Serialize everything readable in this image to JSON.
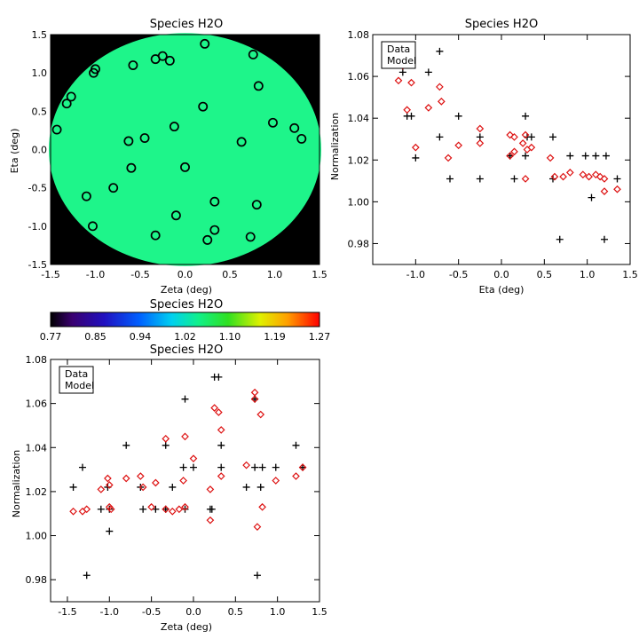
{
  "colors": {
    "data": "#000000",
    "model": "#dd1111",
    "map_bg": "#000000"
  },
  "chart_data": [
    {
      "type": "scatter",
      "id": "map",
      "title": "Species H2O",
      "xlabel": "Zeta (deg)",
      "ylabel": "Eta (deg)",
      "xlim": [
        -1.5,
        1.5
      ],
      "ylim": [
        -1.5,
        1.5
      ],
      "xticks": [
        "-1.5",
        "-1.0",
        "-0.5",
        "0.0",
        "0.5",
        "1.0",
        "1.5"
      ],
      "yticks": [
        "-1.5",
        "-1.0",
        "-0.5",
        "0.0",
        "0.5",
        "1.0",
        "1.5"
      ],
      "field_radius_deg": 1.52,
      "field_value": 1.04,
      "field_color": "#1ef58a",
      "marker": "open-circle",
      "points": [
        [
          -1.0,
          1.05
        ],
        [
          -1.02,
          1.0
        ],
        [
          -0.58,
          1.1
        ],
        [
          -0.33,
          1.18
        ],
        [
          -0.25,
          1.22
        ],
        [
          -0.17,
          1.16
        ],
        [
          0.22,
          1.38
        ],
        [
          0.76,
          1.24
        ],
        [
          0.82,
          0.83
        ],
        [
          -1.27,
          0.69
        ],
        [
          -1.32,
          0.6
        ],
        [
          -1.43,
          0.26
        ],
        [
          0.2,
          0.56
        ],
        [
          -0.45,
          0.15
        ],
        [
          -0.12,
          0.3
        ],
        [
          -0.63,
          0.11
        ],
        [
          0.98,
          0.35
        ],
        [
          1.22,
          0.28
        ],
        [
          1.3,
          0.14
        ],
        [
          0.63,
          0.1
        ],
        [
          -0.6,
          -0.24
        ],
        [
          0.0,
          -0.23
        ],
        [
          -0.8,
          -0.5
        ],
        [
          -1.1,
          -0.61
        ],
        [
          -0.1,
          -0.86
        ],
        [
          0.33,
          -0.68
        ],
        [
          0.8,
          -0.72
        ],
        [
          -1.03,
          -1.0
        ],
        [
          -0.33,
          -1.12
        ],
        [
          0.25,
          -1.18
        ],
        [
          0.33,
          -1.05
        ],
        [
          0.73,
          -1.14
        ]
      ]
    },
    {
      "type": "colorbar",
      "id": "colorbar",
      "title": "Species H2O",
      "range": [
        0.77,
        1.27
      ],
      "ticks": [
        "0.77",
        "0.85",
        "0.94",
        "1.02",
        "1.10",
        "1.19",
        "1.27"
      ]
    },
    {
      "type": "scatter",
      "id": "eta-plot",
      "title": "Species H2O",
      "xlabel": "Eta (deg)",
      "ylabel": "Normalization",
      "xlim": [
        -1.5,
        1.5
      ],
      "ylim": [
        0.97,
        1.08
      ],
      "xticks": [
        "-1.0",
        "-0.5",
        "0.0",
        "0.5",
        "1.0",
        "1.5"
      ],
      "yticks": [
        "0.98",
        "1.00",
        "1.02",
        "1.04",
        "1.06",
        "1.08"
      ],
      "legend": {
        "position": "top-left",
        "entries": [
          "Data",
          "Model"
        ]
      },
      "series": [
        {
          "name": "Data",
          "marker": "plus",
          "points": [
            [
              -1.15,
              1.071
            ],
            [
              -1.15,
              1.066
            ],
            [
              -1.15,
              1.062
            ],
            [
              -1.1,
              1.041
            ],
            [
              -1.05,
              1.041
            ],
            [
              -1.0,
              1.021
            ],
            [
              -0.85,
              1.062
            ],
            [
              -0.72,
              1.072
            ],
            [
              -0.72,
              1.031
            ],
            [
              -0.5,
              1.041
            ],
            [
              -0.6,
              1.011
            ],
            [
              -0.25,
              1.031
            ],
            [
              -0.25,
              1.011
            ],
            [
              0.1,
              1.022
            ],
            [
              0.15,
              1.011
            ],
            [
              0.28,
              1.041
            ],
            [
              0.28,
              1.022
            ],
            [
              0.3,
              1.031
            ],
            [
              0.35,
              1.031
            ],
            [
              0.6,
              1.031
            ],
            [
              0.6,
              1.011
            ],
            [
              0.8,
              1.022
            ],
            [
              0.98,
              1.022
            ],
            [
              1.1,
              1.022
            ],
            [
              1.22,
              1.022
            ],
            [
              1.35,
              1.011
            ],
            [
              1.05,
              1.002
            ],
            [
              0.68,
              0.982
            ],
            [
              1.2,
              0.982
            ]
          ]
        },
        {
          "name": "Model",
          "marker": "open-diamond",
          "points": [
            [
              -1.2,
              1.058
            ],
            [
              -1.15,
              1.065
            ],
            [
              -1.05,
              1.057
            ],
            [
              -1.1,
              1.044
            ],
            [
              -1.0,
              1.026
            ],
            [
              -0.85,
              1.045
            ],
            [
              -0.72,
              1.055
            ],
            [
              -0.7,
              1.048
            ],
            [
              -0.62,
              1.021
            ],
            [
              -0.5,
              1.027
            ],
            [
              -0.25,
              1.035
            ],
            [
              -0.25,
              1.028
            ],
            [
              0.1,
              1.032
            ],
            [
              0.15,
              1.031
            ],
            [
              0.1,
              1.022
            ],
            [
              0.15,
              1.024
            ],
            [
              0.28,
              1.032
            ],
            [
              0.3,
              1.025
            ],
            [
              0.35,
              1.026
            ],
            [
              0.25,
              1.028
            ],
            [
              0.28,
              1.011
            ],
            [
              0.57,
              1.021
            ],
            [
              0.62,
              1.012
            ],
            [
              0.72,
              1.012
            ],
            [
              0.8,
              1.014
            ],
            [
              0.95,
              1.013
            ],
            [
              1.02,
              1.012
            ],
            [
              1.1,
              1.013
            ],
            [
              1.15,
              1.012
            ],
            [
              1.2,
              1.011
            ],
            [
              1.2,
              1.005
            ],
            [
              1.35,
              1.006
            ]
          ]
        }
      ]
    },
    {
      "type": "scatter",
      "id": "zeta-plot",
      "title": "Species H2O",
      "xlabel": "Zeta (deg)",
      "ylabel": "Normalization",
      "xlim": [
        -1.7,
        1.5
      ],
      "ylim": [
        0.97,
        1.08
      ],
      "xticks": [
        "-1.5",
        "-1.0",
        "-0.5",
        "0.0",
        "0.5",
        "1.0",
        "1.5"
      ],
      "yticks": [
        "0.98",
        "1.00",
        "1.02",
        "1.04",
        "1.06",
        "1.08"
      ],
      "legend": {
        "position": "top-left",
        "entries": [
          "Data",
          "Model"
        ]
      },
      "series": [
        {
          "name": "Data",
          "marker": "plus",
          "points": [
            [
              -1.43,
              1.022
            ],
            [
              -1.32,
              1.031
            ],
            [
              -1.27,
              0.982
            ],
            [
              -1.1,
              1.012
            ],
            [
              -1.02,
              1.022
            ],
            [
              -1.0,
              1.012
            ],
            [
              -1.0,
              1.002
            ],
            [
              -0.8,
              1.041
            ],
            [
              -0.63,
              1.022
            ],
            [
              -0.6,
              1.012
            ],
            [
              -0.45,
              1.012
            ],
            [
              -0.33,
              1.041
            ],
            [
              -0.33,
              1.012
            ],
            [
              -0.25,
              1.022
            ],
            [
              -0.12,
              1.031
            ],
            [
              -0.1,
              1.062
            ],
            [
              -0.1,
              1.012
            ],
            [
              0.0,
              1.031
            ],
            [
              0.2,
              1.012
            ],
            [
              0.22,
              1.012
            ],
            [
              0.25,
              1.072
            ],
            [
              0.3,
              1.072
            ],
            [
              0.33,
              1.041
            ],
            [
              0.33,
              1.031
            ],
            [
              0.63,
              1.022
            ],
            [
              0.73,
              1.062
            ],
            [
              0.73,
              1.031
            ],
            [
              0.76,
              0.982
            ],
            [
              0.8,
              1.022
            ],
            [
              0.82,
              1.031
            ],
            [
              0.98,
              1.031
            ],
            [
              1.22,
              1.041
            ],
            [
              1.3,
              1.031
            ]
          ]
        },
        {
          "name": "Model",
          "marker": "open-diamond",
          "points": [
            [
              -1.43,
              1.011
            ],
            [
              -1.32,
              1.011
            ],
            [
              -1.27,
              1.012
            ],
            [
              -1.1,
              1.021
            ],
            [
              -1.02,
              1.026
            ],
            [
              -1.0,
              1.023
            ],
            [
              -1.0,
              1.013
            ],
            [
              -0.98,
              1.012
            ],
            [
              -0.8,
              1.026
            ],
            [
              -0.63,
              1.027
            ],
            [
              -0.6,
              1.022
            ],
            [
              -0.5,
              1.013
            ],
            [
              -0.45,
              1.024
            ],
            [
              -0.33,
              1.044
            ],
            [
              -0.33,
              1.012
            ],
            [
              -0.25,
              1.011
            ],
            [
              -0.17,
              1.012
            ],
            [
              -0.12,
              1.025
            ],
            [
              -0.1,
              1.045
            ],
            [
              -0.1,
              1.013
            ],
            [
              0.0,
              1.035
            ],
            [
              0.2,
              1.021
            ],
            [
              0.2,
              1.007
            ],
            [
              0.25,
              1.058
            ],
            [
              0.3,
              1.056
            ],
            [
              0.33,
              1.048
            ],
            [
              0.33,
              1.027
            ],
            [
              0.63,
              1.032
            ],
            [
              0.73,
              1.065
            ],
            [
              0.73,
              1.062
            ],
            [
              0.76,
              1.004
            ],
            [
              0.8,
              1.055
            ],
            [
              0.82,
              1.013
            ],
            [
              0.98,
              1.025
            ],
            [
              1.22,
              1.027
            ],
            [
              1.3,
              1.031
            ]
          ]
        }
      ]
    }
  ]
}
